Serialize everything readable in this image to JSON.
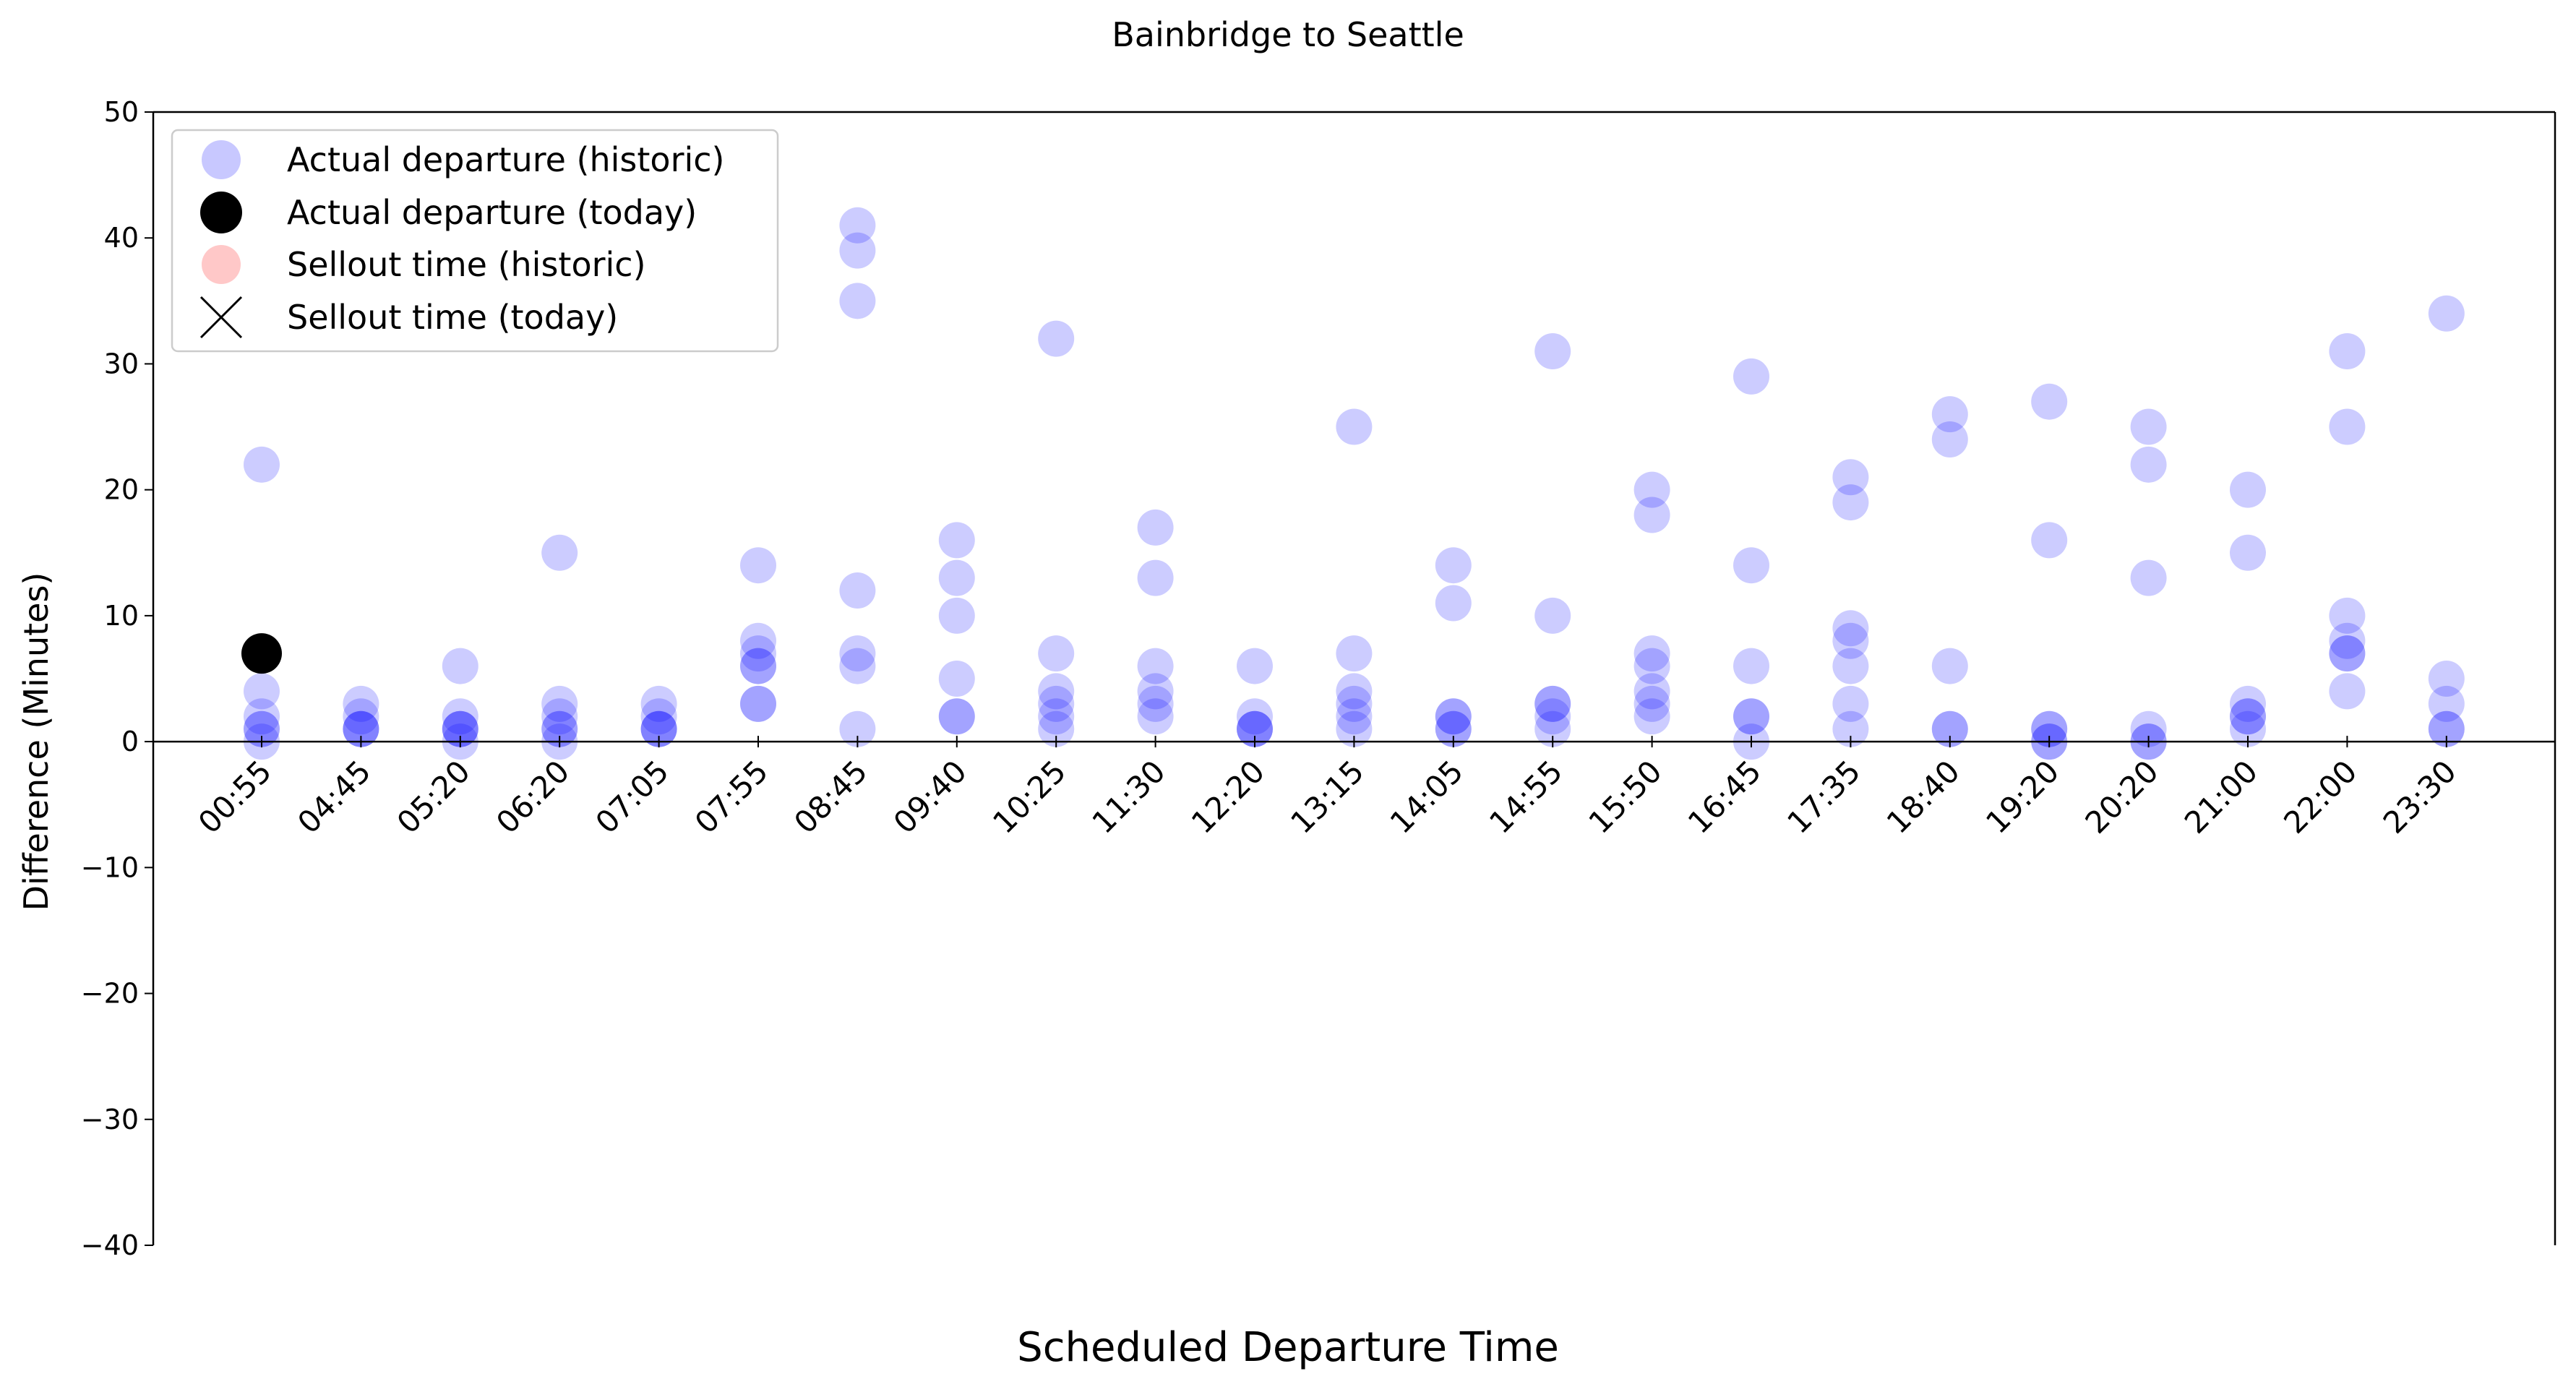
{
  "chart_data": {
    "type": "scatter",
    "title": "Bainbridge to Seattle",
    "xlabel": "Scheduled Departure Time",
    "ylabel": "Difference (Minutes)",
    "ylim": [
      -40,
      50
    ],
    "yticks": [
      -40,
      -30,
      -20,
      -10,
      0,
      10,
      20,
      30,
      40,
      50
    ],
    "categories": [
      "00:55",
      "04:45",
      "05:20",
      "06:20",
      "07:05",
      "07:55",
      "08:45",
      "09:40",
      "10:25",
      "11:30",
      "12:20",
      "13:15",
      "14:05",
      "14:55",
      "15:50",
      "16:45",
      "17:35",
      "18:40",
      "19:20",
      "20:20",
      "21:00",
      "22:00",
      "23:30"
    ],
    "legend_position": "upper-left",
    "grid": false,
    "colors": {
      "historic_departure": "#0000ff",
      "today_departure": "#000000",
      "historic_sellout": "#ffaaaa",
      "today_sellout": "#000000"
    },
    "legend": [
      {
        "label": "Actual departure (historic)",
        "marker": "circle",
        "color": "#c8c8ff"
      },
      {
        "label": "Actual departure (today)",
        "marker": "circle",
        "color": "#000000"
      },
      {
        "label": "Sellout time (historic)",
        "marker": "circle",
        "color": "#ffc8c8"
      },
      {
        "label": "Sellout time (today)",
        "marker": "x",
        "color": "#000000"
      }
    ],
    "series": [
      {
        "name": "Actual departure (historic)",
        "points": [
          {
            "x": "00:55",
            "y": [
              22,
              4,
              2,
              1,
              0,
              1
            ]
          },
          {
            "x": "04:45",
            "y": [
              3,
              2,
              1,
              1,
              1
            ]
          },
          {
            "x": "05:20",
            "y": [
              6,
              2,
              1,
              0,
              1,
              1
            ]
          },
          {
            "x": "06:20",
            "y": [
              15,
              3,
              2,
              1,
              0,
              1
            ]
          },
          {
            "x": "07:05",
            "y": [
              3,
              2,
              1,
              1,
              1
            ]
          },
          {
            "x": "07:55",
            "y": [
              14,
              8,
              7,
              6,
              6,
              3,
              3
            ]
          },
          {
            "x": "08:45",
            "y": [
              41,
              39,
              35,
              12,
              7,
              6,
              1
            ]
          },
          {
            "x": "09:40",
            "y": [
              16,
              13,
              10,
              5,
              2,
              2
            ]
          },
          {
            "x": "10:25",
            "y": [
              32,
              7,
              4,
              3,
              2,
              1
            ]
          },
          {
            "x": "11:30",
            "y": [
              17,
              13,
              6,
              4,
              3,
              2
            ]
          },
          {
            "x": "12:20",
            "y": [
              6,
              2,
              1,
              1,
              1
            ]
          },
          {
            "x": "13:15",
            "y": [
              25,
              7,
              4,
              3,
              2,
              1
            ]
          },
          {
            "x": "14:05",
            "y": [
              14,
              11,
              2,
              2,
              1,
              1
            ]
          },
          {
            "x": "14:55",
            "y": [
              31,
              10,
              3,
              3,
              2,
              1
            ]
          },
          {
            "x": "15:50",
            "y": [
              20,
              18,
              7,
              6,
              4,
              3,
              2
            ]
          },
          {
            "x": "16:45",
            "y": [
              29,
              14,
              6,
              2,
              2,
              0
            ]
          },
          {
            "x": "17:35",
            "y": [
              21,
              19,
              9,
              8,
              6,
              3,
              1
            ]
          },
          {
            "x": "18:40",
            "y": [
              26,
              24,
              6,
              1,
              1
            ]
          },
          {
            "x": "19:20",
            "y": [
              27,
              16,
              1,
              1,
              0,
              0
            ]
          },
          {
            "x": "20:20",
            "y": [
              25,
              22,
              13,
              1,
              0,
              0
            ]
          },
          {
            "x": "21:00",
            "y": [
              20,
              15,
              3,
              2,
              2,
              1
            ]
          },
          {
            "x": "22:00",
            "y": [
              31,
              25,
              10,
              8,
              7,
              7,
              4
            ]
          },
          {
            "x": "23:30",
            "y": [
              34,
              5,
              3,
              1,
              1
            ]
          }
        ]
      },
      {
        "name": "Actual departure (today)",
        "points": [
          {
            "x": "00:55",
            "y": [
              7
            ]
          }
        ]
      }
    ]
  }
}
